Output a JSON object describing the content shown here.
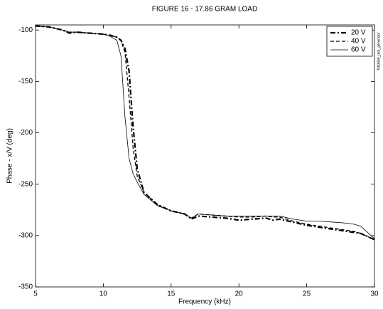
{
  "chart_data": {
    "type": "line",
    "title": "FIGURE 16 - 17.86 GRAM LOAD",
    "x_label": "Frequency (kHz)",
    "y_label": "Phase - x/V (deg)",
    "note": "RA0869_plot_generator",
    "x": [
      5,
      6,
      7,
      7.5,
      8,
      9,
      10,
      10.5,
      11,
      11.3,
      11.6,
      11.9,
      12.2,
      12.5,
      13,
      14,
      15,
      16,
      16.5,
      17,
      18,
      19,
      20,
      21,
      22,
      22.5,
      23,
      24,
      25,
      26,
      27,
      28,
      28.5,
      29,
      30
    ],
    "series": [
      {
        "name": "20 V",
        "color": "#000000",
        "style": "dashdot",
        "width": 2.2,
        "values": [
          -96,
          -97,
          -100,
          -103,
          -102,
          -103,
          -104,
          -105,
          -107,
          -110,
          -118,
          -140,
          -195,
          -235,
          -258,
          -270,
          -276,
          -279,
          -284,
          -281,
          -282,
          -283,
          -285,
          -284,
          -283,
          -285,
          -284,
          -287,
          -290,
          -292,
          -294,
          -296,
          -297,
          -298,
          -304
        ]
      },
      {
        "name": "40 V",
        "color": "#000000",
        "style": "dashed",
        "width": 1.3,
        "values": [
          -96,
          -97,
          -100,
          -102,
          -102,
          -103,
          -104,
          -105,
          -107,
          -110,
          -122,
          -165,
          -215,
          -242,
          -258,
          -270,
          -276,
          -279,
          -283,
          -279,
          -280,
          -281,
          -282,
          -282,
          -281,
          -282,
          -282,
          -286,
          -289,
          -291,
          -293,
          -295,
          -296,
          -298,
          -304
        ]
      },
      {
        "name": "60 V",
        "color": "#000000",
        "style": "solid",
        "width": 0.8,
        "values": [
          -96,
          -97,
          -100,
          -102,
          -102,
          -103,
          -104,
          -106,
          -110,
          -125,
          -185,
          -225,
          -240,
          -248,
          -260,
          -271,
          -276,
          -279,
          -283,
          -279,
          -280,
          -281,
          -281,
          -281,
          -281,
          -281,
          -281,
          -284,
          -286,
          -286,
          -287,
          -288,
          -289,
          -291,
          -303
        ]
      }
    ],
    "xlim": [
      5,
      30
    ],
    "xticks": [
      5,
      10,
      15,
      20,
      25,
      30
    ],
    "ylim": [
      -350,
      -95
    ],
    "yticks": [
      -350,
      -300,
      -250,
      -200,
      -150,
      -100
    ],
    "grid": false,
    "legend": "upper right"
  }
}
